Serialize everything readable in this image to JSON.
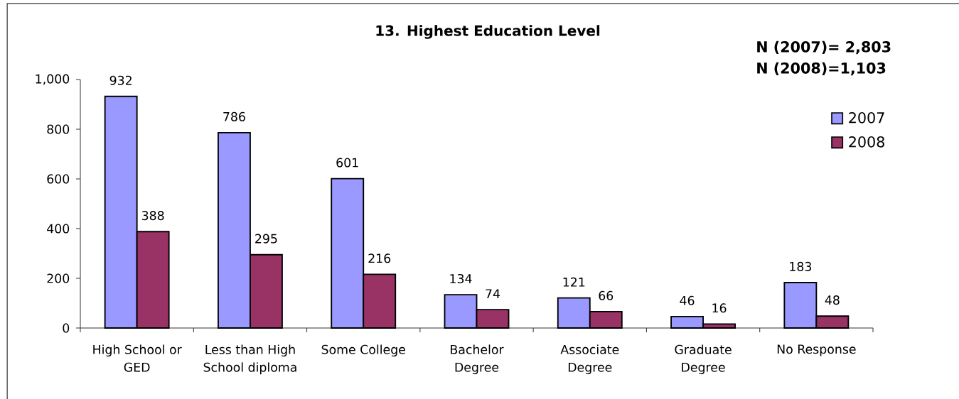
{
  "chart_data": {
    "type": "bar",
    "title": "13. Highest Education Level",
    "annotations": [
      "N (2007)= 2,803",
      "N (2008)=1,103"
    ],
    "categories": [
      "High School or GED",
      "Less than High School diploma",
      "Some College",
      "Bachelor Degree",
      "Associate Degree",
      "Graduate Degree",
      "No Response"
    ],
    "series": [
      {
        "name": "2007",
        "color": "#9999ff",
        "values": [
          932,
          786,
          601,
          134,
          121,
          46,
          183
        ]
      },
      {
        "name": "2008",
        "color": "#993366",
        "values": [
          388,
          295,
          216,
          74,
          66,
          16,
          48
        ]
      }
    ],
    "ylim": [
      0,
      1000
    ],
    "yticks": [
      0,
      200,
      400,
      600,
      800,
      {
        "value": 1000,
        "label": "1,000"
      }
    ],
    "legend": "top right",
    "data_labels": true
  }
}
